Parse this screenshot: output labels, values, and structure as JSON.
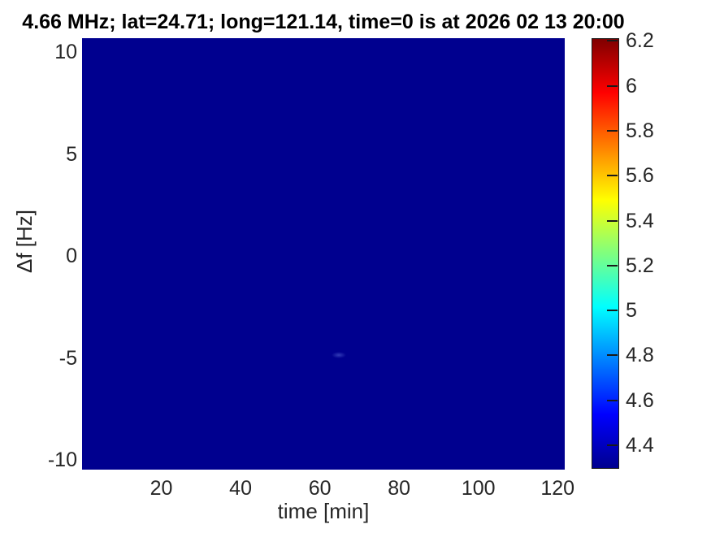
{
  "chart_data": {
    "type": "heatmap",
    "title": "4.66 MHz;  lat=24.71; long=121.14, time=0 is at 2026 02 13 20:00",
    "xlabel": "time [min]",
    "ylabel": "Δf [Hz]",
    "x_ticks": [
      20,
      40,
      60,
      80,
      100,
      120
    ],
    "y_ticks": [
      10,
      5,
      0,
      -5,
      -10
    ],
    "xlim": [
      0,
      122
    ],
    "ylim": [
      -10.6,
      10.7
    ],
    "grid": false,
    "legend": false,
    "field": {
      "description": "uniform field at the colormap minimum (dark navy); no visible structure except a very faint lighter smudge near t=65 min, df=-5.5 Hz",
      "uniform_value": 4.35
    },
    "colorbar": {
      "position": "right",
      "colormap": "jet",
      "ticks": [
        6.2,
        6,
        5.8,
        5.6,
        5.4,
        5.2,
        5,
        4.8,
        4.6,
        4.4
      ],
      "min": 4.3,
      "max": 6.22
    },
    "colors": {
      "plot_fill": "#00008F",
      "title_color": "#000000",
      "tick_label_color": "#262626",
      "colormap_stops": [
        "#00008F",
        "#0000FF",
        "#00FFFF",
        "#FFFF00",
        "#FF0000",
        "#800000"
      ]
    }
  }
}
